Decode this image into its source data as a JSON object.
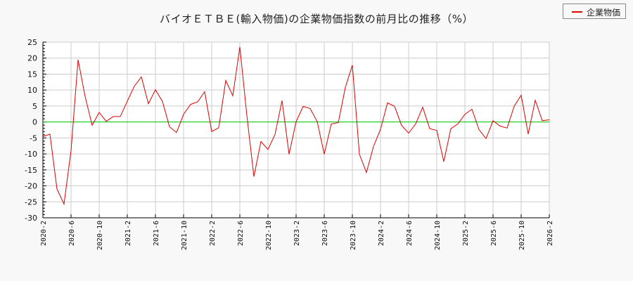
{
  "title": "バイオＥＴＢＥ(輸入物価)の企業物価指数の前月比の推移（%）",
  "legend": {
    "label": "企業物価",
    "color": "#e00000"
  },
  "colors": {
    "line": "#e00000",
    "zero_line": "#00cc00",
    "grid": "#cccccc",
    "axis": "#000000",
    "plot_bg": "#ffffff",
    "page_bg": "#f8f8f8"
  },
  "chart_data": {
    "type": "line",
    "title": "バイオＥＴＢＥ(輸入物価)の企業物価指数の前月比の推移（%）",
    "xlabel": "",
    "ylabel": "",
    "ylim": [
      -30,
      25
    ],
    "yticks": [
      25,
      20,
      15,
      10,
      5,
      0,
      -5,
      -10,
      -15,
      -20,
      -25,
      -30
    ],
    "xticks": [
      "2020-2",
      "2020-6",
      "2020-10",
      "2021-2",
      "2021-6",
      "2021-10",
      "2022-2",
      "2022-6",
      "2022-10",
      "2023-2",
      "2023-6",
      "2023-10",
      "2024-2",
      "2024-6",
      "2024-10",
      "2025-2",
      "2025-6",
      "2025-10",
      "2026-2"
    ],
    "grid": true,
    "legend_position": "top-right",
    "x_start": "2020-2",
    "x_end": "2026-2",
    "series": [
      {
        "name": "企業物価",
        "values": [
          -4.6,
          -3.8,
          -21.0,
          -25.7,
          -9.0,
          19.5,
          8.0,
          -1.0,
          3.0,
          0.2,
          1.7,
          1.7,
          6.5,
          11.2,
          14.1,
          5.7,
          10.1,
          6.4,
          -1.5,
          -3.3,
          2.4,
          5.5,
          6.3,
          9.5,
          -3.0,
          -1.8,
          13.0,
          8.2,
          23.5,
          2.0,
          -17.1,
          -6.1,
          -8.6,
          -3.9,
          6.7,
          -10.1,
          0.1,
          4.9,
          4.2,
          0.1,
          -10.1,
          -0.6,
          -0.2,
          10.8,
          17.8,
          -10.1,
          -15.8,
          -7.7,
          -2.3,
          6.0,
          4.9,
          -1.1,
          -3.5,
          -0.6,
          4.6,
          -2.1,
          -2.6,
          -12.4,
          -2.1,
          -0.6,
          2.4,
          4.0,
          -2.4,
          -5.2,
          0.4,
          -1.3,
          -1.9,
          4.9,
          8.4,
          -3.8,
          6.8,
          0.4,
          0.7
        ]
      }
    ]
  }
}
